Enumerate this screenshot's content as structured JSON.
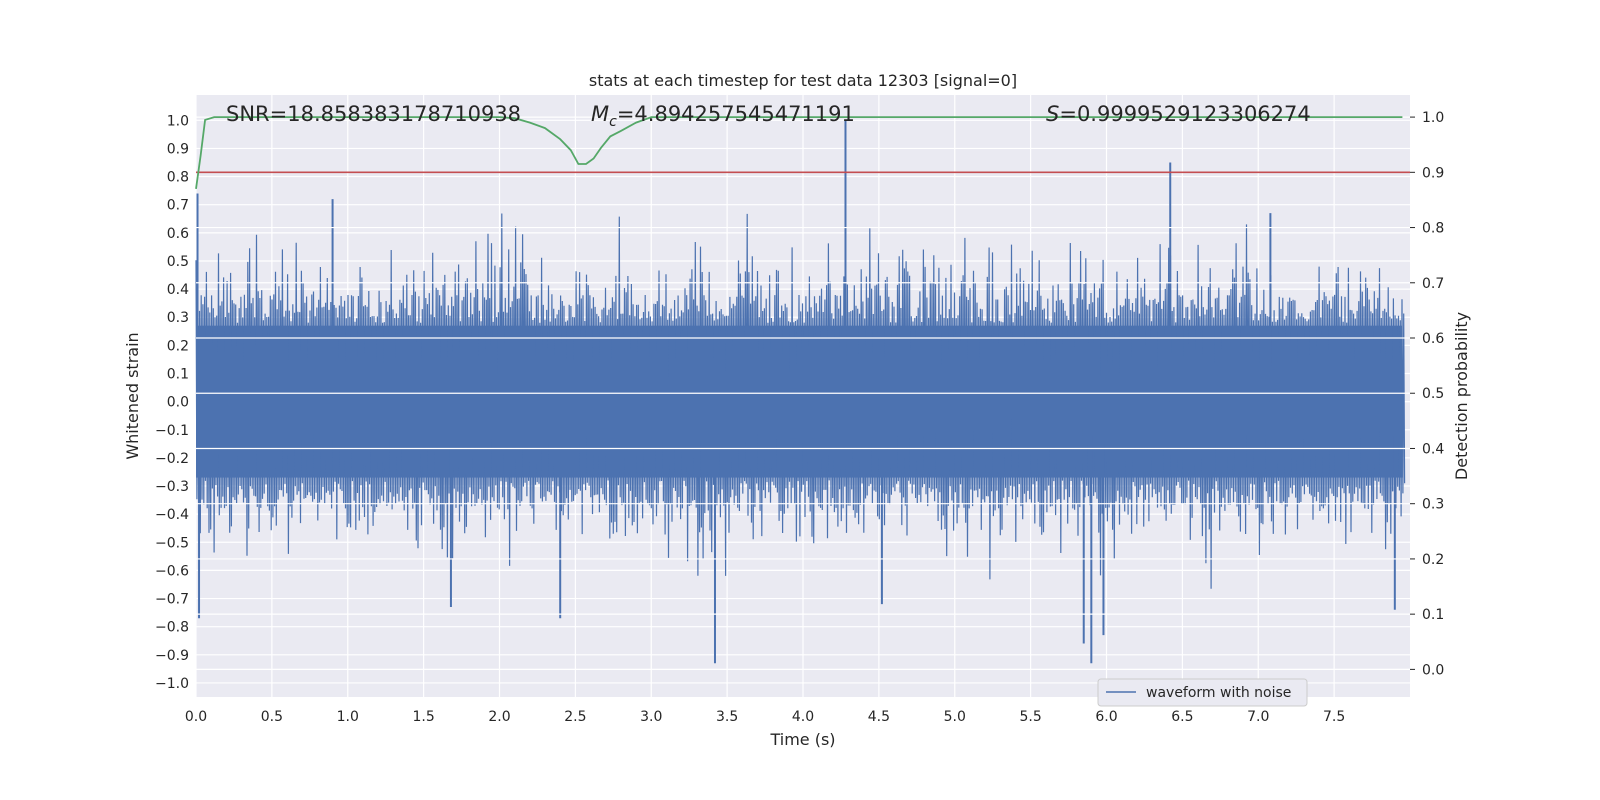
{
  "chart_data": {
    "type": "line",
    "title": "stats at each timestep for test data 12303 [signal=0]",
    "xlabel": "Time (s)",
    "ylabel": "Whitened strain",
    "ylabel_right": "Detection probability",
    "xlim": [
      0.0,
      8.0
    ],
    "ylim": [
      -1.05,
      1.09
    ],
    "ylim_right": [
      -0.05,
      1.04
    ],
    "x_ticks": [
      0.0,
      0.5,
      1.0,
      1.5,
      2.0,
      2.5,
      3.0,
      3.5,
      4.0,
      4.5,
      5.0,
      5.5,
      6.0,
      6.5,
      7.0,
      7.5
    ],
    "x_tick_labels": [
      "0.0",
      "0.5",
      "1.0",
      "1.5",
      "2.0",
      "2.5",
      "3.0",
      "3.5",
      "4.0",
      "4.5",
      "5.0",
      "5.5",
      "6.0",
      "6.5",
      "7.0",
      "7.5"
    ],
    "y_ticks": [
      1.0,
      0.9,
      0.8,
      0.7,
      0.6,
      0.5,
      0.4,
      0.3,
      0.2,
      0.1,
      0.0,
      -0.1,
      -0.2,
      -0.3,
      -0.4,
      -0.5,
      -0.6,
      -0.7,
      -0.8,
      -0.9,
      -1.0
    ],
    "y_tick_labels": [
      "1.0",
      "0.9",
      "0.8",
      "0.7",
      "0.6",
      "0.5",
      "0.4",
      "0.3",
      "0.2",
      "0.1",
      "0.0",
      "−0.1",
      "−0.2",
      "−0.3",
      "−0.4",
      "−0.5",
      "−0.6",
      "−0.7",
      "−0.8",
      "−0.9",
      "−1.0"
    ],
    "y_right_ticks": [
      1.0,
      0.9,
      0.8,
      0.7,
      0.6,
      0.5,
      0.4,
      0.3,
      0.2,
      0.1,
      0.0
    ],
    "y_right_tick_labels": [
      "1.0",
      "0.9",
      "0.8",
      "0.7",
      "0.6",
      "0.5",
      "0.4",
      "0.3",
      "0.2",
      "0.1",
      "0.0"
    ],
    "annotations": {
      "snr": "SNR=18.858383178710938",
      "mc_symbol": "M",
      "mc_subscript": "c",
      "mc_value": "=4.894257545471191",
      "s_symbol": "S",
      "s_value": "=0.9999529123306274"
    },
    "legend": {
      "label": "waveform with noise",
      "placement": "lower-right"
    },
    "series": [
      {
        "name": "waveform with noise",
        "axis": "left",
        "color": "#4c72b0",
        "core_amplitude": 0.27,
        "peaks": [
          {
            "x": 0.01,
            "y": 0.74
          },
          {
            "x": 0.02,
            "y": -0.77
          },
          {
            "x": 0.9,
            "y": 0.72
          },
          {
            "x": 1.68,
            "y": -0.73
          },
          {
            "x": 2.4,
            "y": -0.77
          },
          {
            "x": 3.42,
            "y": -0.93
          },
          {
            "x": 4.28,
            "y": 1.0
          },
          {
            "x": 4.52,
            "y": -0.72
          },
          {
            "x": 5.85,
            "y": -0.86
          },
          {
            "x": 5.9,
            "y": -0.93
          },
          {
            "x": 5.98,
            "y": -0.83
          },
          {
            "x": 6.42,
            "y": 0.85
          },
          {
            "x": 7.08,
            "y": 0.67
          },
          {
            "x": 7.9,
            "y": -0.74
          }
        ]
      },
      {
        "name": "detection probability",
        "axis": "right",
        "color": "#55a868",
        "x": [
          0.0,
          0.03,
          0.06,
          0.12,
          0.5,
          1.0,
          1.5,
          2.0,
          2.1,
          2.2,
          2.3,
          2.4,
          2.47,
          2.52,
          2.57,
          2.62,
          2.67,
          2.73,
          2.8,
          2.9,
          3.0,
          3.5,
          4.0,
          5.0,
          6.0,
          7.0,
          7.95
        ],
        "y": [
          0.87,
          0.93,
          0.995,
          1.0,
          1.0,
          1.0,
          1.0,
          1.0,
          0.998,
          0.99,
          0.98,
          0.96,
          0.94,
          0.915,
          0.915,
          0.925,
          0.945,
          0.965,
          0.975,
          0.99,
          1.0,
          1.0,
          1.0,
          1.0,
          1.0,
          1.0,
          1.0
        ]
      },
      {
        "name": "threshold",
        "axis": "right",
        "color": "#c44e52",
        "x": [
          0.0,
          8.0
        ],
        "y": [
          0.9,
          0.9
        ]
      }
    ],
    "grid": true
  }
}
